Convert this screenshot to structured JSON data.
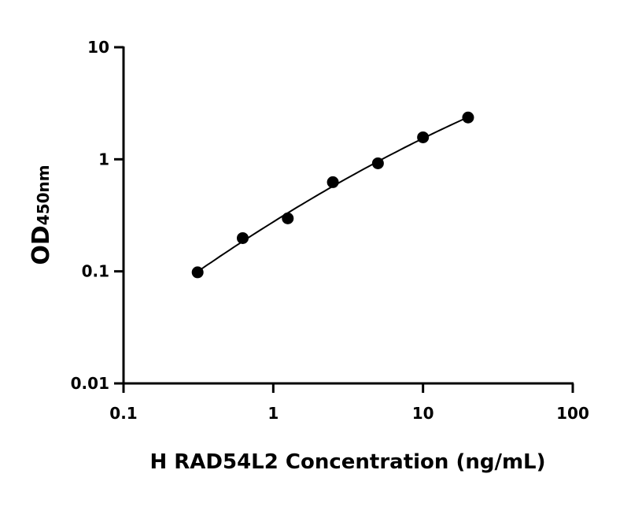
{
  "chart_data": {
    "type": "scatter",
    "title": "",
    "xlabel": "H RAD54L2 Concentration (ng/mL)",
    "ylabel": "OD",
    "ylabel_subscript": "450nm",
    "x_scale": "log",
    "y_scale": "log",
    "xlim": [
      0.1,
      100
    ],
    "ylim": [
      0.01,
      10
    ],
    "x_ticks": [
      "0.1",
      "1",
      "10",
      "100"
    ],
    "y_ticks": [
      "0.01",
      "0.1",
      "1",
      "10"
    ],
    "grid": false,
    "fit_curve": true,
    "series": [
      {
        "x": [
          0.3125,
          0.625,
          1.25,
          2.5,
          5,
          10,
          20
        ],
        "y": [
          0.098,
          0.198,
          0.297,
          0.625,
          0.92,
          1.57,
          2.36
        ]
      }
    ],
    "colors": {
      "marker": "#000000",
      "line": "#000000"
    }
  }
}
